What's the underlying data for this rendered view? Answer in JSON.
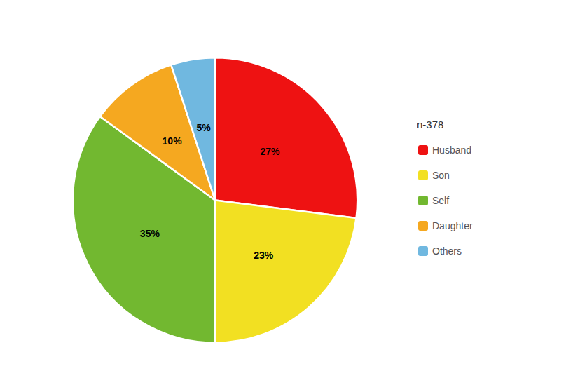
{
  "chart_data": {
    "type": "pie",
    "legend_title": "n-378",
    "categories": [
      "Husband",
      "Son",
      "Self",
      "Daughter",
      "Others"
    ],
    "values": [
      27,
      23,
      35,
      10,
      5
    ],
    "value_labels": [
      "27%",
      "23%",
      "35%",
      "10%",
      "5%"
    ],
    "colors": [
      "#ee1212",
      "#f2e022",
      "#72b830",
      "#f5a820",
      "#70b8e0"
    ],
    "data_labels": true,
    "legend": "right"
  }
}
